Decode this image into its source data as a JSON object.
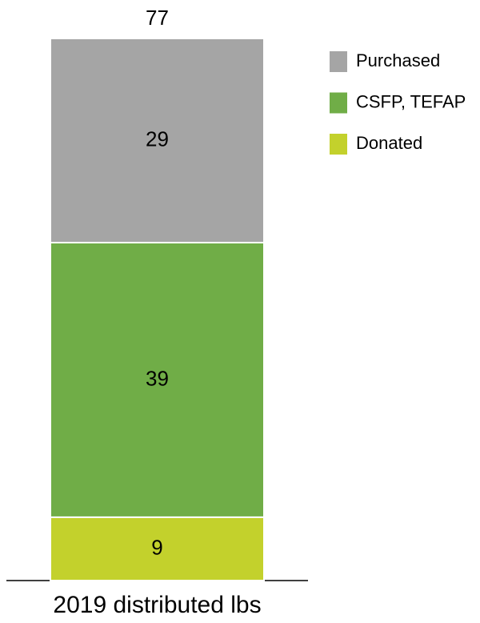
{
  "chart_data": {
    "type": "stacked_bar",
    "categories": [
      "2019 distributed lbs"
    ],
    "series": [
      {
        "name": "Purchased",
        "color": "#a5a5a5",
        "values": [
          29
        ]
      },
      {
        "name": "CSFP, TEFAP",
        "color": "#70ad47",
        "values": [
          39
        ]
      },
      {
        "name": "Donated",
        "color": "#c3d12c",
        "values": [
          9
        ]
      }
    ],
    "totals": [
      77
    ]
  }
}
